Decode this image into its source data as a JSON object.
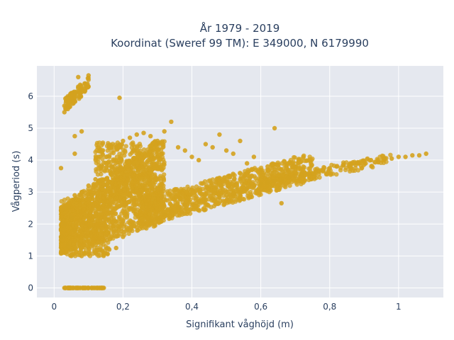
{
  "chart_data": {
    "type": "scatter",
    "title_line1": "År 1979 - 2019",
    "title_line2": "Koordinat (Sweref 99 TM): E 349000, N 6179990",
    "xlabel": "Signifikant våghöjd (m)",
    "ylabel": "Vågperiod (s)",
    "xlim": [
      -0.05,
      1.13
    ],
    "ylim": [
      -0.3,
      6.95
    ],
    "xticks": [
      {
        "value": 0,
        "label": "0"
      },
      {
        "value": 0.2,
        "label": "0,2"
      },
      {
        "value": 0.4,
        "label": "0,4"
      },
      {
        "value": 0.6,
        "label": "0,6"
      },
      {
        "value": 0.8,
        "label": "0,8"
      },
      {
        "value": 1.0,
        "label": "1"
      }
    ],
    "yticks": [
      {
        "value": 0,
        "label": "0"
      },
      {
        "value": 1,
        "label": "1"
      },
      {
        "value": 2,
        "label": "2"
      },
      {
        "value": 3,
        "label": "3"
      },
      {
        "value": 4,
        "label": "4"
      },
      {
        "value": 5,
        "label": "5"
      },
      {
        "value": 6,
        "label": "6"
      }
    ],
    "grid": true,
    "marker_color": "#D4A21E",
    "plot_bg": "#E5E8EF",
    "series": [
      {
        "values": [
          [
            0.03,
            0.0
          ],
          [
            0.05,
            0.0
          ],
          [
            0.07,
            0.0
          ],
          [
            0.09,
            0.0
          ],
          [
            0.11,
            0.0
          ],
          [
            0.13,
            0.0
          ],
          [
            0.14,
            0.0
          ],
          [
            0.03,
            5.5
          ],
          [
            0.03,
            5.7
          ],
          [
            0.04,
            5.9
          ],
          [
            0.05,
            6.1
          ],
          [
            0.06,
            6.0
          ],
          [
            0.07,
            6.3
          ],
          [
            0.08,
            6.2
          ],
          [
            0.09,
            6.4
          ],
          [
            0.1,
            6.3
          ],
          [
            0.07,
            6.6
          ],
          [
            0.1,
            6.65
          ],
          [
            0.04,
            5.6
          ],
          [
            0.02,
            3.75
          ],
          [
            0.06,
            4.75
          ],
          [
            0.06,
            4.2
          ],
          [
            0.08,
            4.9
          ],
          [
            0.19,
            5.95
          ],
          [
            0.02,
            1.1
          ],
          [
            0.02,
            1.6
          ],
          [
            0.03,
            2.0
          ],
          [
            0.03,
            2.5
          ],
          [
            0.04,
            1.3
          ],
          [
            0.04,
            2.6
          ],
          [
            0.05,
            1.0
          ],
          [
            0.05,
            2.2
          ],
          [
            0.06,
            1.8
          ],
          [
            0.06,
            2.9
          ],
          [
            0.08,
            1.0
          ],
          [
            0.08,
            3.0
          ],
          [
            0.1,
            1.05
          ],
          [
            0.1,
            3.2
          ],
          [
            0.12,
            1.1
          ],
          [
            0.12,
            3.4
          ],
          [
            0.14,
            1.15
          ],
          [
            0.14,
            3.8
          ],
          [
            0.16,
            1.2
          ],
          [
            0.16,
            4.1
          ],
          [
            0.18,
            1.25
          ],
          [
            0.18,
            4.4
          ],
          [
            0.2,
            1.6
          ],
          [
            0.2,
            4.6
          ],
          [
            0.22,
            1.8
          ],
          [
            0.22,
            4.7
          ],
          [
            0.24,
            1.9
          ],
          [
            0.24,
            4.8
          ],
          [
            0.26,
            2.0
          ],
          [
            0.26,
            4.85
          ],
          [
            0.28,
            2.1
          ],
          [
            0.28,
            4.75
          ],
          [
            0.3,
            2.2
          ],
          [
            0.3,
            4.6
          ],
          [
            0.32,
            2.3
          ],
          [
            0.32,
            4.9
          ],
          [
            0.34,
            2.4
          ],
          [
            0.34,
            5.2
          ],
          [
            0.36,
            2.5
          ],
          [
            0.36,
            4.4
          ],
          [
            0.38,
            2.6
          ],
          [
            0.38,
            4.3
          ],
          [
            0.4,
            2.6
          ],
          [
            0.4,
            4.1
          ],
          [
            0.42,
            2.7
          ],
          [
            0.42,
            4.0
          ],
          [
            0.44,
            2.75
          ],
          [
            0.44,
            4.5
          ],
          [
            0.46,
            2.8
          ],
          [
            0.46,
            4.4
          ],
          [
            0.48,
            2.85
          ],
          [
            0.48,
            4.8
          ],
          [
            0.5,
            2.9
          ],
          [
            0.5,
            4.3
          ],
          [
            0.52,
            2.95
          ],
          [
            0.52,
            4.2
          ],
          [
            0.54,
            3.0
          ],
          [
            0.54,
            4.6
          ],
          [
            0.56,
            3.1
          ],
          [
            0.56,
            3.9
          ],
          [
            0.58,
            3.2
          ],
          [
            0.58,
            4.1
          ],
          [
            0.6,
            3.25
          ],
          [
            0.6,
            3.7
          ],
          [
            0.62,
            3.3
          ],
          [
            0.62,
            3.8
          ],
          [
            0.64,
            3.35
          ],
          [
            0.64,
            5.0
          ],
          [
            0.66,
            3.4
          ],
          [
            0.66,
            2.65
          ],
          [
            0.68,
            3.45
          ],
          [
            0.68,
            3.7
          ],
          [
            0.7,
            3.5
          ],
          [
            0.7,
            3.8
          ],
          [
            0.72,
            3.55
          ],
          [
            0.74,
            3.6
          ],
          [
            0.76,
            3.65
          ],
          [
            0.78,
            3.7
          ],
          [
            0.8,
            3.75
          ],
          [
            0.82,
            3.8
          ],
          [
            0.84,
            3.85
          ],
          [
            0.86,
            3.9
          ],
          [
            0.88,
            3.9
          ],
          [
            0.9,
            3.95
          ],
          [
            0.92,
            4.0
          ],
          [
            0.94,
            4.0
          ],
          [
            0.96,
            4.05
          ],
          [
            0.98,
            4.05
          ],
          [
            1.0,
            4.1
          ],
          [
            1.02,
            4.1
          ],
          [
            1.04,
            4.15
          ],
          [
            1.06,
            4.15
          ],
          [
            1.08,
            4.2
          ]
        ]
      }
    ]
  }
}
